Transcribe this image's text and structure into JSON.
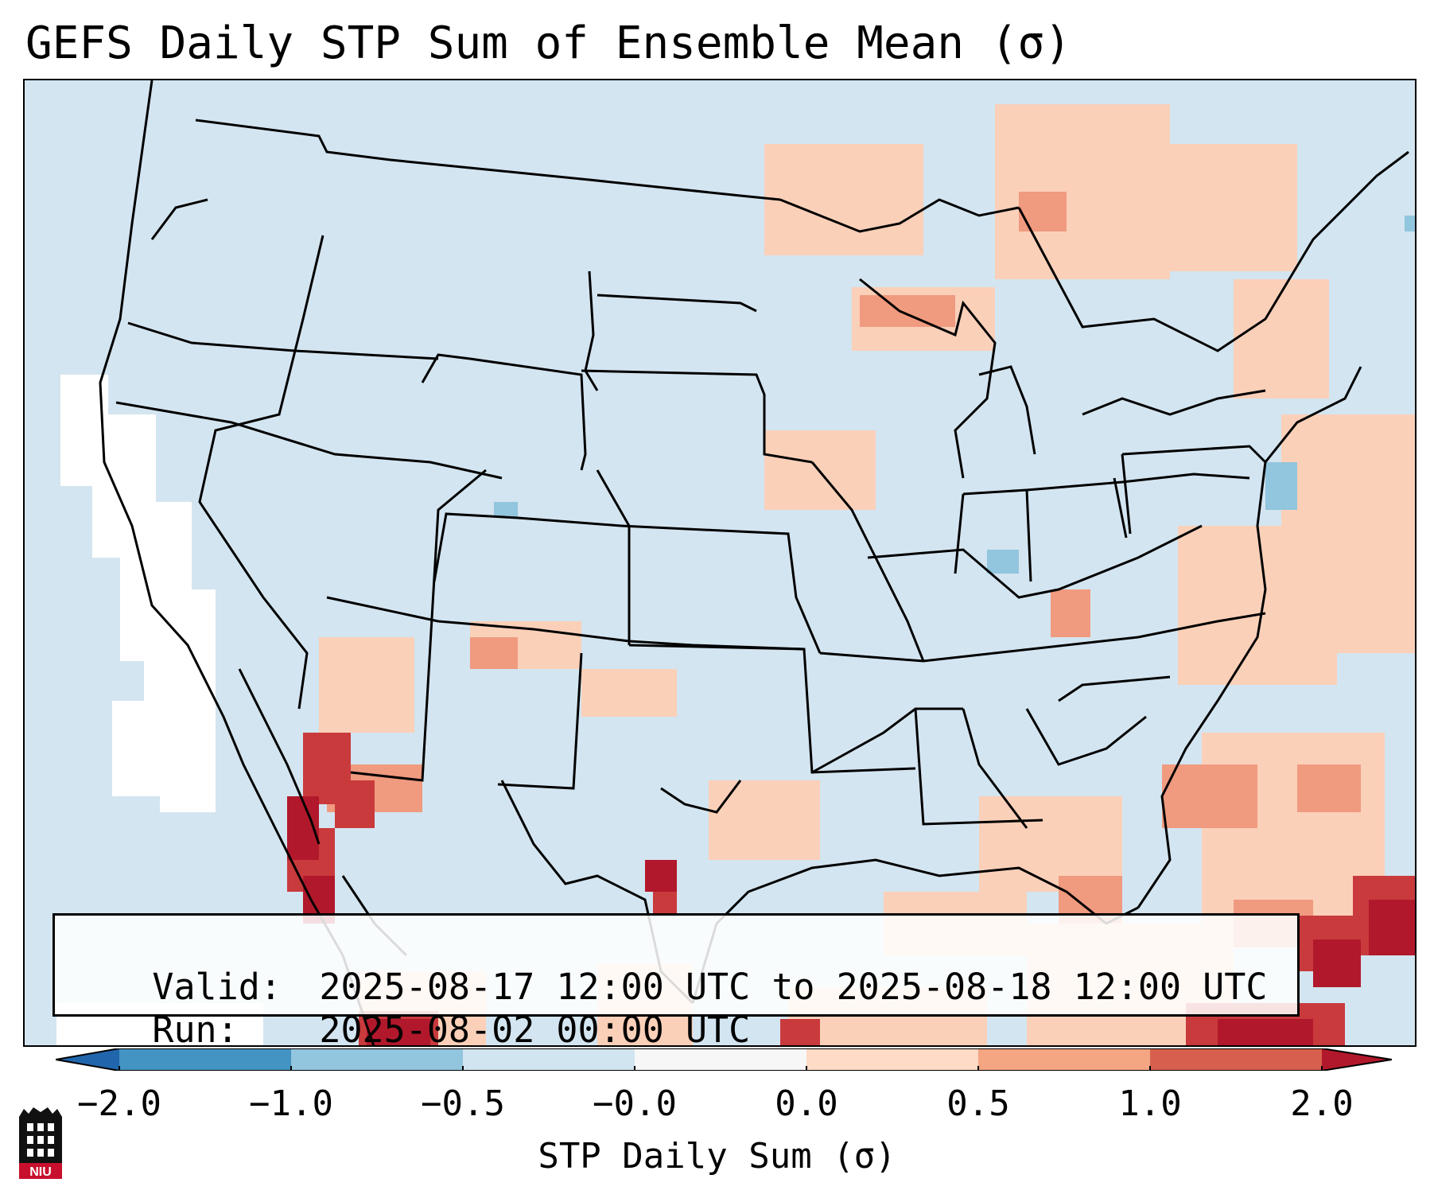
{
  "title": "GEFS Daily STP Sum of Ensemble Mean (σ)",
  "map": {
    "region": "CONUS",
    "background_color": "#d3e5f0",
    "colors": {
      "cat_low_pos": "#fbd0b9",
      "cat_mid_pos": "#f09a7f",
      "cat_high_pos": "#c93a3d",
      "cat_extreme_pos": "#b2182b",
      "near_zero": "#ffffff",
      "neg_small": "#92c5de"
    }
  },
  "valid_box": {
    "valid_label": "Valid:",
    "valid_value": "2025-08-17 12:00 UTC to 2025-08-18 12:00 UTC",
    "run_label": "Run:",
    "run_value": "2025-08-02 00:00 UTC"
  },
  "colorbar": {
    "label": "STP Daily Sum (σ)",
    "ticks": [
      "−2.0",
      "−1.0",
      "−0.5",
      "−0.0",
      "0.0",
      "0.5",
      "1.0",
      "2.0"
    ],
    "colors": [
      "#2166ac",
      "#4393c3",
      "#92c5de",
      "#d1e5f0",
      "#f7f7f7",
      "#fddbc7",
      "#f4a582",
      "#d6604d",
      "#b2182b"
    ],
    "bounds": [
      -2.0,
      -1.0,
      -0.5,
      -0.0,
      0.0,
      0.5,
      1.0,
      2.0
    ]
  },
  "logo": {
    "text": "NIU"
  }
}
